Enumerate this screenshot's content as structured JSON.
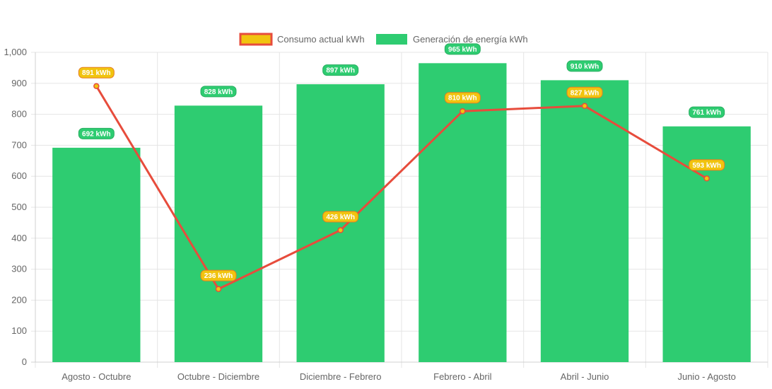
{
  "chart_data": {
    "type": "bar",
    "categories": [
      "Agosto - Octubre",
      "Octubre - Diciembre",
      "Diciembre - Febrero",
      "Febrero - Abril",
      "Abril - Junio",
      "Junio - Agosto"
    ],
    "series": [
      {
        "name": "Consumo actual kWh",
        "type": "line",
        "values": [
          891,
          236,
          426,
          810,
          827,
          593
        ],
        "color": "#e74c3c",
        "fill": "#f1c40f",
        "label_bg": "#f1c40f",
        "label_border": "#e67e22"
      },
      {
        "name": "Generación de energía kWh",
        "type": "bar",
        "values": [
          692,
          828,
          897,
          965,
          910,
          761
        ],
        "color": "#2ecc71",
        "label_bg": "#2ecc71",
        "label_border": "#27ae60"
      }
    ],
    "label_suffix": " kWh",
    "ylim": [
      0,
      1000
    ],
    "yticks": [
      0,
      100,
      200,
      300,
      400,
      500,
      600,
      700,
      800,
      900,
      1000
    ],
    "ytick_labels": [
      "0",
      "100",
      "200",
      "300",
      "400",
      "500",
      "600",
      "700",
      "800",
      "900",
      "1,000"
    ],
    "grid": true,
    "legend_position": "top-center",
    "title": "",
    "xlabel": "",
    "ylabel": ""
  }
}
